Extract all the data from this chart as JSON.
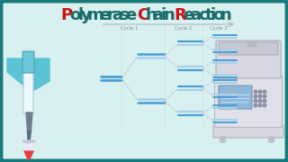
{
  "title": "Polymerase Chain Reaction",
  "bg_color": "#d8f0f0",
  "border_color": "#1a7a7a",
  "dna_solid": "#4a9fd4",
  "dna_light": "#a8d0e8",
  "dna_dashed": "#c8dff0",
  "line_color": "#c0c8d0",
  "arrow_color": "#b0b8c0",
  "cycle_label_color": "#888888",
  "cycle_labels": [
    "Cycle 1",
    "Cycle 2",
    "Cycle 3"
  ],
  "title_dark": "#1a6b6b",
  "title_red": "#cc1111"
}
